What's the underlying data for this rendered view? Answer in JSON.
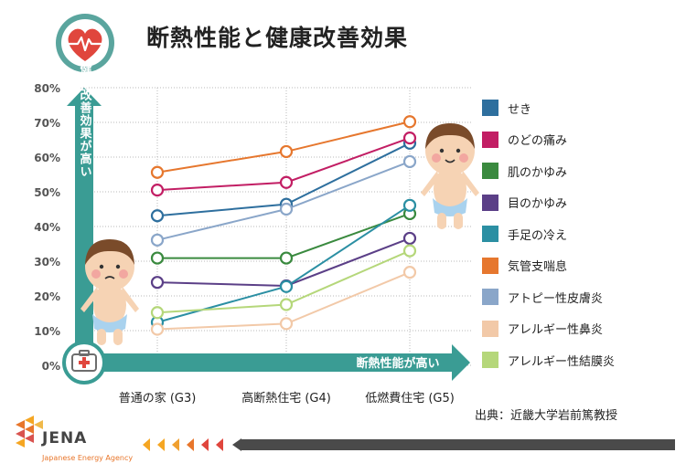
{
  "title": "断熱性能と健康改善効果",
  "source": "出典：近畿大学岩前篤教授",
  "logo": {
    "name": "JENA",
    "subtitle": "Japanese Energy Agency"
  },
  "icons": {
    "badge": "heart-pulse-icon",
    "box": "first-aid-kit-icon"
  },
  "colors": {
    "axis_teal": "#3a9c94",
    "badge_teal": "#5aa59e",
    "heart_red": "#e0463d",
    "footer_dark": "#4a4a4a"
  },
  "chart_data": {
    "type": "line",
    "title": "断熱性能と健康改善効果",
    "xlabel": "断熱性能が高い",
    "ylabel": "健康改善効果が高い",
    "categories": [
      "普通の家 (G3)",
      "高断熱住宅 (G4)",
      "低燃費住宅 (G5)"
    ],
    "ylim": [
      0,
      80
    ],
    "yticks": [
      "0%",
      "10%",
      "20%",
      "30%",
      "40%",
      "50%",
      "60%",
      "70%",
      "80%"
    ],
    "legend_position": "right",
    "series": [
      {
        "name": "せき",
        "color": "#2e6f9e",
        "values": [
          43.1,
          46.4,
          64.0
        ]
      },
      {
        "name": "のどの痛み",
        "color": "#c21e64",
        "values": [
          50.5,
          52.7,
          65.5
        ]
      },
      {
        "name": "肌のかゆみ",
        "color": "#3a8a3f",
        "values": [
          30.9,
          30.9,
          43.7
        ]
      },
      {
        "name": "目のかゆみ",
        "color": "#5b3f87",
        "values": [
          23.9,
          22.9,
          36.6
        ]
      },
      {
        "name": "手足の冷え",
        "color": "#2b8fa3",
        "values": [
          12.4,
          22.7,
          46.1
        ]
      },
      {
        "name": "気管支喘息",
        "color": "#e6772e",
        "values": [
          55.6,
          61.6,
          70.2
        ]
      },
      {
        "name": "アトピー性皮膚炎",
        "color": "#8aa6c9",
        "values": [
          36.1,
          45.0,
          58.7
        ]
      },
      {
        "name": "アレルギー性鼻炎",
        "color": "#f2c9a8",
        "values": [
          10.4,
          12.0,
          26.8
        ]
      },
      {
        "name": "アレルギー性結膜炎",
        "color": "#b5d77a",
        "values": [
          15.2,
          17.5,
          33.0
        ]
      }
    ]
  }
}
